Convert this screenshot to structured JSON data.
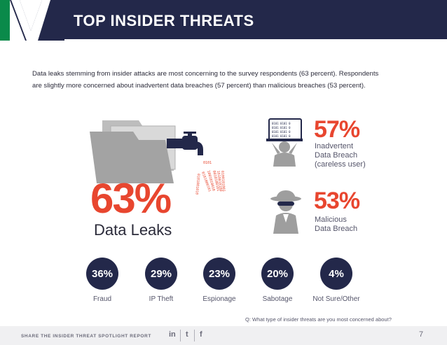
{
  "header": {
    "title": "TOP INSIDER THREATS"
  },
  "intro": {
    "line1": "Data leaks stemming from insider attacks are most concerning to the survey respondents (63 percent). Respondents",
    "line2": "are slightly more concerned about inadvertent data breaches (57 percent) than malicious breaches (53 percent)."
  },
  "data_leaks": {
    "percent": "63%",
    "label": "Data Leaks"
  },
  "inadvertent": {
    "percent": "57%",
    "line1": "Inadvertent",
    "line2": "Data Breach",
    "line3": "(careless user)",
    "icon": "careless-user-icon"
  },
  "malicious": {
    "percent": "53%",
    "line1": "Malicious",
    "line2": "Data Breach",
    "icon": "spy-icon"
  },
  "threats": [
    {
      "percent": "36%",
      "label": "Fraud"
    },
    {
      "percent": "29%",
      "label": "IP Theft"
    },
    {
      "percent": "23%",
      "label": "Espionage"
    },
    {
      "percent": "20%",
      "label": "Sabotage"
    },
    {
      "percent": "4%",
      "label": "Not Sure/Other"
    }
  ],
  "question": "Q: What type of insider threats are you most concerned about?",
  "footer": {
    "share_text": "SHARE THE INSIDER THREAT SPOTLIGHT REPORT",
    "linkedin": "in",
    "twitter": "t",
    "facebook": "f",
    "page_number": "7"
  },
  "colors": {
    "navy": "#23284a",
    "accent": "#e8462f",
    "green": "#0a8a4a"
  }
}
